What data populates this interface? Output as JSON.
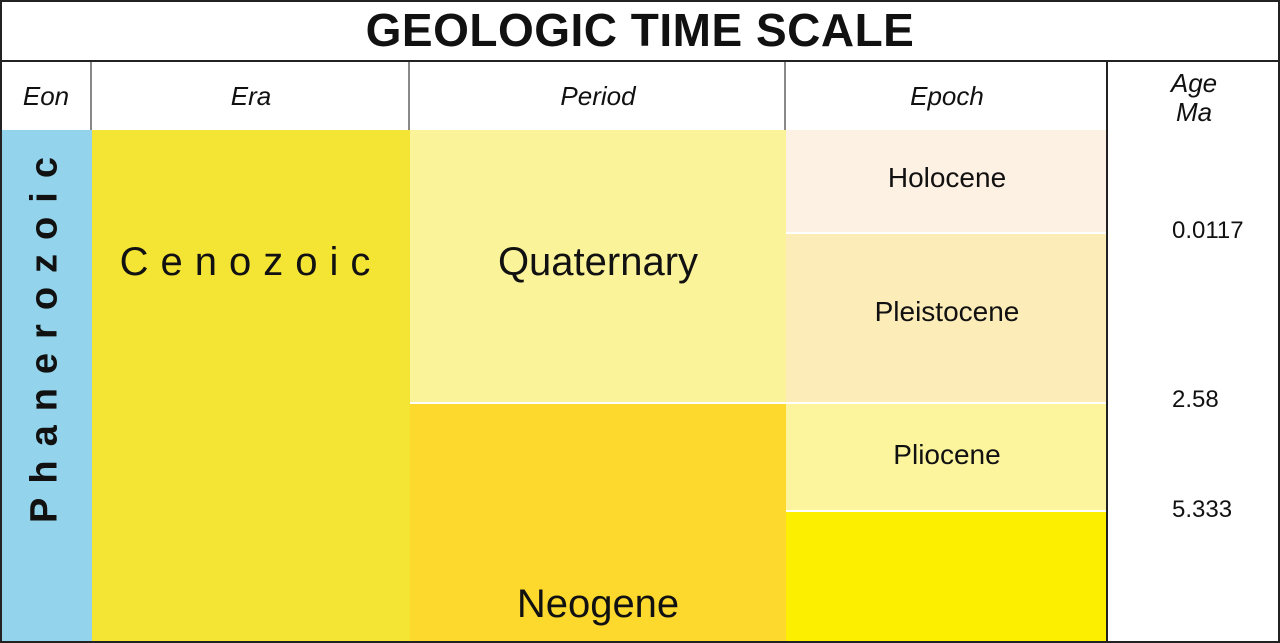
{
  "title": "GEOLOGIC TIME SCALE",
  "headers": {
    "eon": "Eon",
    "era": "Era",
    "period": "Period",
    "epoch": "Epoch",
    "age_line1": "Age",
    "age_line2": "Ma"
  },
  "eon": {
    "name": "Phanerozoic",
    "color": "#93d3ec"
  },
  "era": {
    "name": "Cenozoic",
    "color": "#f4e535"
  },
  "periods": [
    {
      "name": "Quaternary",
      "color": "#fbf39a"
    },
    {
      "name": "Neogene",
      "color": "#fdd92e"
    }
  ],
  "epochs": [
    {
      "name": "Holocene",
      "color": "#fdf1e4"
    },
    {
      "name": "Pleistocene",
      "color": "#fcecb8"
    },
    {
      "name": "Pliocene",
      "color": "#fcf59d"
    },
    {
      "name": "",
      "color": "#fcf000"
    }
  ],
  "ages": [
    "0.0117",
    "2.58",
    "5.333"
  ]
}
